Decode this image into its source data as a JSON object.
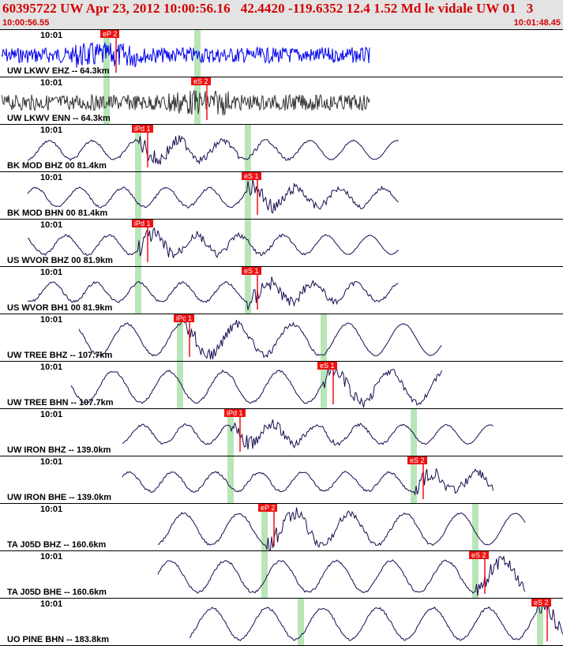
{
  "header": {
    "title": "60395722 UW Apr 23, 2012 10:00:56.16   42.4420 -119.6352 12.4 1.52 Md le vidale UW 01   3",
    "start_time": "10:00:56.55",
    "end_time": "10:01:48.45"
  },
  "colors": {
    "header_bg": "#e3e3e3",
    "header_text": "#d40000",
    "pick": "#ee1111",
    "marker": "#b8e6b8",
    "trace_primary": "#0000ee",
    "trace_secondary": "#333333",
    "trace_default": "#1a0a50"
  },
  "channels": [
    {
      "label": "UW LKWV EHZ -- 64.3km",
      "tick": "10:01",
      "pick": "eP 2",
      "pick_at": 0.19,
      "color": "#0000ee",
      "markers": [
        0.19,
        0.35
      ]
    },
    {
      "label": "UW LKWV ENN -- 64.3km",
      "tick": "10:01",
      "pick": "eS 2",
      "pick_at": 0.35,
      "color": "#333333",
      "markers": [
        0.19,
        0.35
      ]
    },
    {
      "label": "BK MOD BHZ 00 81.4km",
      "tick": "10:01",
      "pick": "iPd 1",
      "pick_at": 0.245,
      "color": "#1a0a50",
      "markers": [
        0.245,
        0.44
      ]
    },
    {
      "label": "BK MOD BHN 00 81.4km",
      "tick": "10:01",
      "pick": "eS 1",
      "pick_at": 0.44,
      "color": "#1a0a50",
      "markers": [
        0.245,
        0.44
      ]
    },
    {
      "label": "US WVOR BHZ 00 81.9km",
      "tick": "10:01",
      "pick": "iPd 1",
      "pick_at": 0.245,
      "color": "#1a0a50",
      "markers": [
        0.245,
        0.44
      ]
    },
    {
      "label": "US WVOR BH1 00 81.9km",
      "tick": "10:01",
      "pick": "eS 1",
      "pick_at": 0.44,
      "color": "#1a0a50",
      "markers": [
        0.245,
        0.44
      ]
    },
    {
      "label": "UW TREE BHZ -- 107.7km",
      "tick": "10:01",
      "pick": "iPc 1",
      "pick_at": 0.32,
      "color": "#1a0a50",
      "markers": [
        0.32,
        0.575
      ]
    },
    {
      "label": "UW TREE BHN -- 107.7km",
      "tick": "10:01",
      "pick": "eS 1",
      "pick_at": 0.575,
      "color": "#1a0a50",
      "markers": [
        0.32,
        0.575
      ]
    },
    {
      "label": "UW IRON BHZ -- 139.0km",
      "tick": "10:01",
      "pick": "iPd 1",
      "pick_at": 0.41,
      "color": "#1a0a50",
      "markers": [
        0.41,
        0.735
      ]
    },
    {
      "label": "UW IRON BHE -- 139.0km",
      "tick": "10:01",
      "pick": "eS 2",
      "pick_at": 0.735,
      "color": "#1a0a50",
      "markers": [
        0.41,
        0.735
      ]
    },
    {
      "label": "TA J05D BHZ -- 160.6km",
      "tick": "10:01",
      "pick": "eP 2",
      "pick_at": 0.47,
      "color": "#1a0a50",
      "markers": [
        0.47,
        0.845
      ]
    },
    {
      "label": "TA J05D BHE -- 160.6km",
      "tick": "10:01",
      "pick": "eS 2",
      "pick_at": 0.845,
      "color": "#1a0a50",
      "markers": [
        0.47,
        0.845
      ]
    },
    {
      "label": "UO PINE BHN -- 183.8km",
      "tick": "10:01",
      "pick": "eS 2",
      "pick_at": 0.955,
      "color": "#1a0a50",
      "markers": [
        0.535,
        0.96
      ]
    }
  ]
}
